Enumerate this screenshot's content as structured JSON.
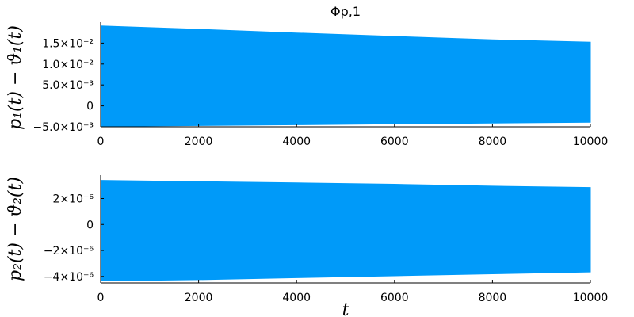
{
  "chart_data": [
    {
      "type": "area",
      "title": "Φp,1",
      "xlabel": "",
      "ylabel": "p₁(t) − ϑ₁(t)",
      "xlim": [
        0,
        10000
      ],
      "ylim": [
        -0.005,
        0.02
      ],
      "x_ticks": [
        {
          "value": 0,
          "label": "0"
        },
        {
          "value": 2000,
          "label": "2000"
        },
        {
          "value": 4000,
          "label": "4000"
        },
        {
          "value": 6000,
          "label": "6000"
        },
        {
          "value": 8000,
          "label": "8000"
        },
        {
          "value": 10000,
          "label": "10000"
        }
      ],
      "y_ticks": [
        {
          "value": -0.005,
          "label": "−5.0×10⁻³"
        },
        {
          "value": 0,
          "label": "0"
        },
        {
          "value": 0.005,
          "label": "5.0×10⁻³"
        },
        {
          "value": 0.01,
          "label": "1.0×10⁻²"
        },
        {
          "value": 0.015,
          "label": "1.5×10⁻²"
        }
      ],
      "series": [
        {
          "color": "#009af9",
          "x": [
            0,
            2000,
            4000,
            6000,
            8000,
            10000
          ],
          "upper": [
            0.0191,
            0.0183,
            0.0174,
            0.0166,
            0.0158,
            0.0152
          ],
          "lower": [
            -0.0049,
            -0.0047,
            -0.0045,
            -0.0043,
            -0.0041,
            -0.0039
          ]
        }
      ],
      "grid": false,
      "legend": "none"
    },
    {
      "type": "area",
      "title": "",
      "xlabel": "t",
      "ylabel": "p₂(t) − ϑ₂(t)",
      "xlim": [
        0,
        10000
      ],
      "ylim": [
        -4.5e-06,
        3.8e-06
      ],
      "x_ticks": [
        {
          "value": 0,
          "label": "0"
        },
        {
          "value": 2000,
          "label": "2000"
        },
        {
          "value": 4000,
          "label": "4000"
        },
        {
          "value": 6000,
          "label": "6000"
        },
        {
          "value": 8000,
          "label": "8000"
        },
        {
          "value": 10000,
          "label": "10000"
        }
      ],
      "y_ticks": [
        {
          "value": -4e-06,
          "label": "−4×10⁻⁶"
        },
        {
          "value": -2e-06,
          "label": "−2×10⁻⁶"
        },
        {
          "value": 0,
          "label": "0"
        },
        {
          "value": 2e-06,
          "label": "2×10⁻⁶"
        }
      ],
      "series": [
        {
          "color": "#009af9",
          "x": [
            0,
            2000,
            4000,
            6000,
            8000,
            10000
          ],
          "upper": [
            3.4e-06,
            3.3e-06,
            3.2e-06,
            3.1e-06,
            2.95e-06,
            2.85e-06
          ],
          "lower": [
            -4.35e-06,
            -4.25e-06,
            -4.1e-06,
            -3.95e-06,
            -3.8e-06,
            -3.65e-06
          ]
        }
      ],
      "grid": false,
      "legend": "none"
    }
  ]
}
